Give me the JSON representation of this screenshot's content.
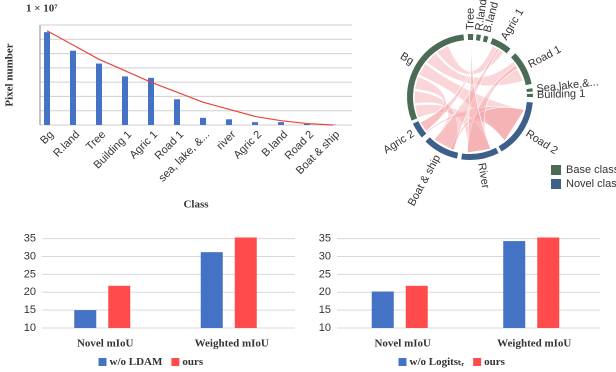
{
  "chart_data": [
    {
      "type": "bar",
      "y_multiplier": "1 × 10⁷",
      "y_label": "Pixel number",
      "x_label": "Class",
      "categories": [
        "Bg",
        "R.land",
        "Tree",
        "Building 1",
        "Agric 1",
        "Road 1",
        "sea, lake, &...",
        "river",
        "Agric 2",
        "B.land",
        "Road 2",
        "Boat & ship"
      ],
      "values": [
        6.5,
        5.2,
        4.3,
        3.4,
        3.3,
        1.8,
        0.5,
        0.4,
        0.2,
        0.2,
        0.07,
        0.03
      ],
      "color": "#4472c4",
      "trend": {
        "color": "#e8453c",
        "values": [
          6.6,
          5.6,
          4.6,
          3.8,
          3.0,
          2.3,
          1.6,
          1.1,
          0.6,
          0.3,
          0.1,
          0.0
        ]
      },
      "ylim": [
        0,
        7
      ],
      "yticks": [
        0,
        1,
        2,
        3,
        4,
        5,
        6,
        7
      ],
      "grid": true
    },
    {
      "type": "grouped-bar",
      "categories": [
        "Novel mIoU",
        "Weighted mIoU"
      ],
      "series": [
        {
          "name": "w/o LDAM",
          "color": "#4472c4",
          "values": [
            15.0,
            31.2
          ]
        },
        {
          "name": "ours",
          "color": "#ff4b4b",
          "values": [
            21.8,
            35.3
          ]
        }
      ],
      "ylim": [
        10,
        36
      ],
      "yticks": [
        10,
        15,
        20,
        25,
        30,
        35
      ],
      "grid": true
    },
    {
      "type": "grouped-bar",
      "categories": [
        "Novel mIoU",
        "Weighted mIoU"
      ],
      "series": [
        {
          "name": "w/o Logitsₜᵣ",
          "color": "#4472c4",
          "values": [
            20.2,
            34.3
          ]
        },
        {
          "name": "ours",
          "color": "#ff4b4b",
          "values": [
            21.8,
            35.3
          ]
        }
      ],
      "ylim": [
        10,
        36
      ],
      "yticks": [
        10,
        15,
        20,
        25,
        30,
        35
      ],
      "grid": true
    }
  ],
  "chord": {
    "legend": [
      {
        "name": "Base class",
        "color": "#4b6b55"
      },
      {
        "name": "Novel class",
        "color": "#3e5f8a"
      }
    ],
    "nodes": [
      {
        "label": "Bg",
        "group": 0
      },
      {
        "label": "Tree",
        "group": 0
      },
      {
        "label": "R.land",
        "group": 0
      },
      {
        "label": "B.land",
        "group": 0
      },
      {
        "label": "Agric 1",
        "group": 0
      },
      {
        "label": "Road 1",
        "group": 0
      },
      {
        "label": "Sea,lake,&...",
        "group": 0
      },
      {
        "label": "Building 1",
        "group": 0
      },
      {
        "label": "Road 2",
        "group": 1
      },
      {
        "label": "River",
        "group": 1
      },
      {
        "label": "Boat & ship",
        "group": 1
      },
      {
        "label": "Agric 2",
        "group": 1
      }
    ]
  }
}
